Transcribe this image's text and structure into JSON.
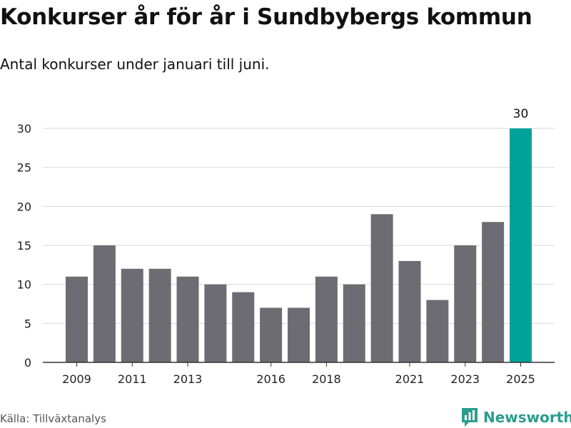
{
  "header": {
    "title": "Konkurser år för år i Sundbybergs kommun",
    "subtitle": "Antal konkurser under januari till juni."
  },
  "footer": {
    "source": "Källa: Tillväxtanalys",
    "brand": "Newsworthy"
  },
  "colors": {
    "bar": "#6d6c72",
    "highlight": "#00a39a",
    "grid": "#d9d9d9",
    "brand": "#2a9d8f"
  },
  "chart_data": {
    "type": "bar",
    "categories": [
      "2009",
      "2010",
      "2011",
      "2012",
      "2013",
      "2014",
      "2015",
      "2016",
      "2017",
      "2018",
      "2019",
      "2020",
      "2021",
      "2022",
      "2023",
      "2024",
      "2025"
    ],
    "x_tick_labels": [
      "2009",
      "2011",
      "2013",
      "2016",
      "2018",
      "2021",
      "2023",
      "2025"
    ],
    "values": [
      11,
      15,
      12,
      12,
      11,
      10,
      9,
      7,
      7,
      11,
      10,
      19,
      13,
      8,
      15,
      18,
      30
    ],
    "highlight_index": 16,
    "data_labels": [
      {
        "category": "2025",
        "text": "30"
      }
    ],
    "ylim": [
      0,
      30
    ],
    "y_ticks": [
      0,
      5,
      10,
      15,
      20,
      25,
      30
    ],
    "grid": true,
    "xlabel": "",
    "ylabel": ""
  }
}
